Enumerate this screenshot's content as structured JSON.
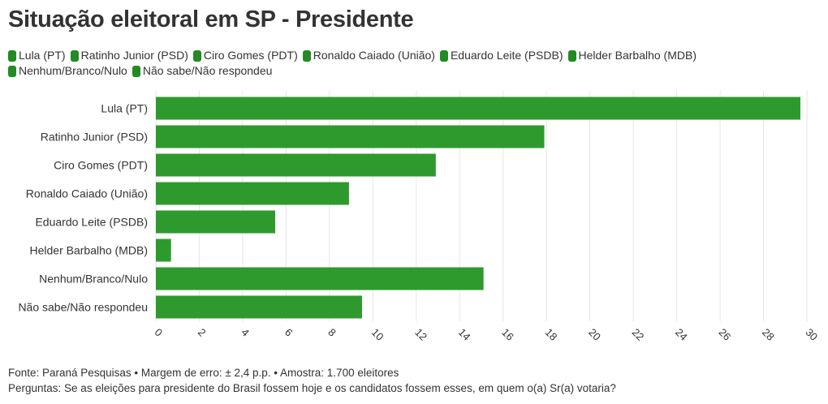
{
  "title": "Situação eleitoral em SP - Presidente",
  "colors": {
    "bar": "#2e9a2e",
    "swatch": "#228b22",
    "grid": "#e6e6e6",
    "text": "#333333"
  },
  "chart_data": {
    "type": "bar",
    "orientation": "horizontal",
    "title": "Situação eleitoral em SP - Presidente",
    "categories": [
      "Lula (PT)",
      "Ratinho Junior (PSD)",
      "Ciro Gomes (PDT)",
      "Ronaldo Caiado (União)",
      "Eduardo Leite (PSDB)",
      "Helder Barbalho (MDB)",
      "Nenhum/Branco/Nulo",
      "Não sabe/Não respondeu"
    ],
    "values": [
      29.7,
      17.9,
      12.9,
      8.9,
      5.5,
      0.7,
      15.1,
      9.5
    ],
    "legend": [
      "Lula (PT)",
      "Ratinho Junior (PSD)",
      "Ciro Gomes (PDT)",
      "Ronaldo Caiado (União)",
      "Eduardo Leite (PSDB)",
      "Helder Barbalho (MDB)",
      "Nenhum/Branco/Nulo",
      "Não sabe/Não respondeu"
    ],
    "xlim": [
      0,
      30
    ],
    "xticks": [
      "0",
      "2",
      "4",
      "6",
      "8",
      "10",
      "12",
      "14",
      "16",
      "18",
      "20",
      "22",
      "24",
      "26",
      "28",
      "30"
    ],
    "xlabel": "",
    "ylabel": "",
    "grid": true,
    "legend_position": "top"
  },
  "footer": {
    "source": "Fonte: Paraná Pesquisas • Margem de erro: ± 2,4 p.p. • Amostra: 1.700 eleitores",
    "question": "Perguntas: Se as eleições para presidente do Brasil fossem hoje e os candidatos fossem esses, em quem o(a) Sr(a) votaria?"
  }
}
